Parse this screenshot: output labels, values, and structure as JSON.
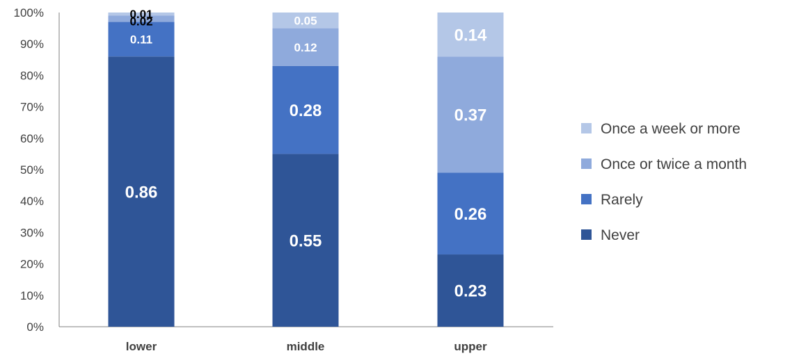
{
  "chart_data": {
    "type": "bar",
    "stacked": "percent",
    "title": "",
    "xlabel": "",
    "ylabel": "",
    "categories": [
      "lower",
      "middle",
      "upper"
    ],
    "y_ticks": [
      "0%",
      "10%",
      "20%",
      "30%",
      "40%",
      "50%",
      "60%",
      "70%",
      "80%",
      "90%",
      "100%"
    ],
    "ylim": [
      0,
      1
    ],
    "grid": false,
    "legend_position": "right",
    "series": [
      {
        "name": "Never",
        "color": "#2F5597",
        "values": [
          0.86,
          0.55,
          0.23
        ],
        "labels": [
          "0.86",
          "0.55",
          "0.23"
        ]
      },
      {
        "name": "Rarely",
        "color": "#4472C4",
        "values": [
          0.11,
          0.28,
          0.26
        ],
        "labels": [
          "0.11",
          "0.28",
          "0.26"
        ]
      },
      {
        "name": "Once or twice a month",
        "color": "#8FAADC",
        "values": [
          0.02,
          0.12,
          0.37
        ],
        "labels": [
          "0.02",
          "0.12",
          "0.37"
        ]
      },
      {
        "name": "Once a week or more",
        "color": "#B4C7E7",
        "values": [
          0.01,
          0.05,
          0.14
        ],
        "labels": [
          "0.01",
          "0.05",
          "0.14"
        ]
      }
    ]
  }
}
